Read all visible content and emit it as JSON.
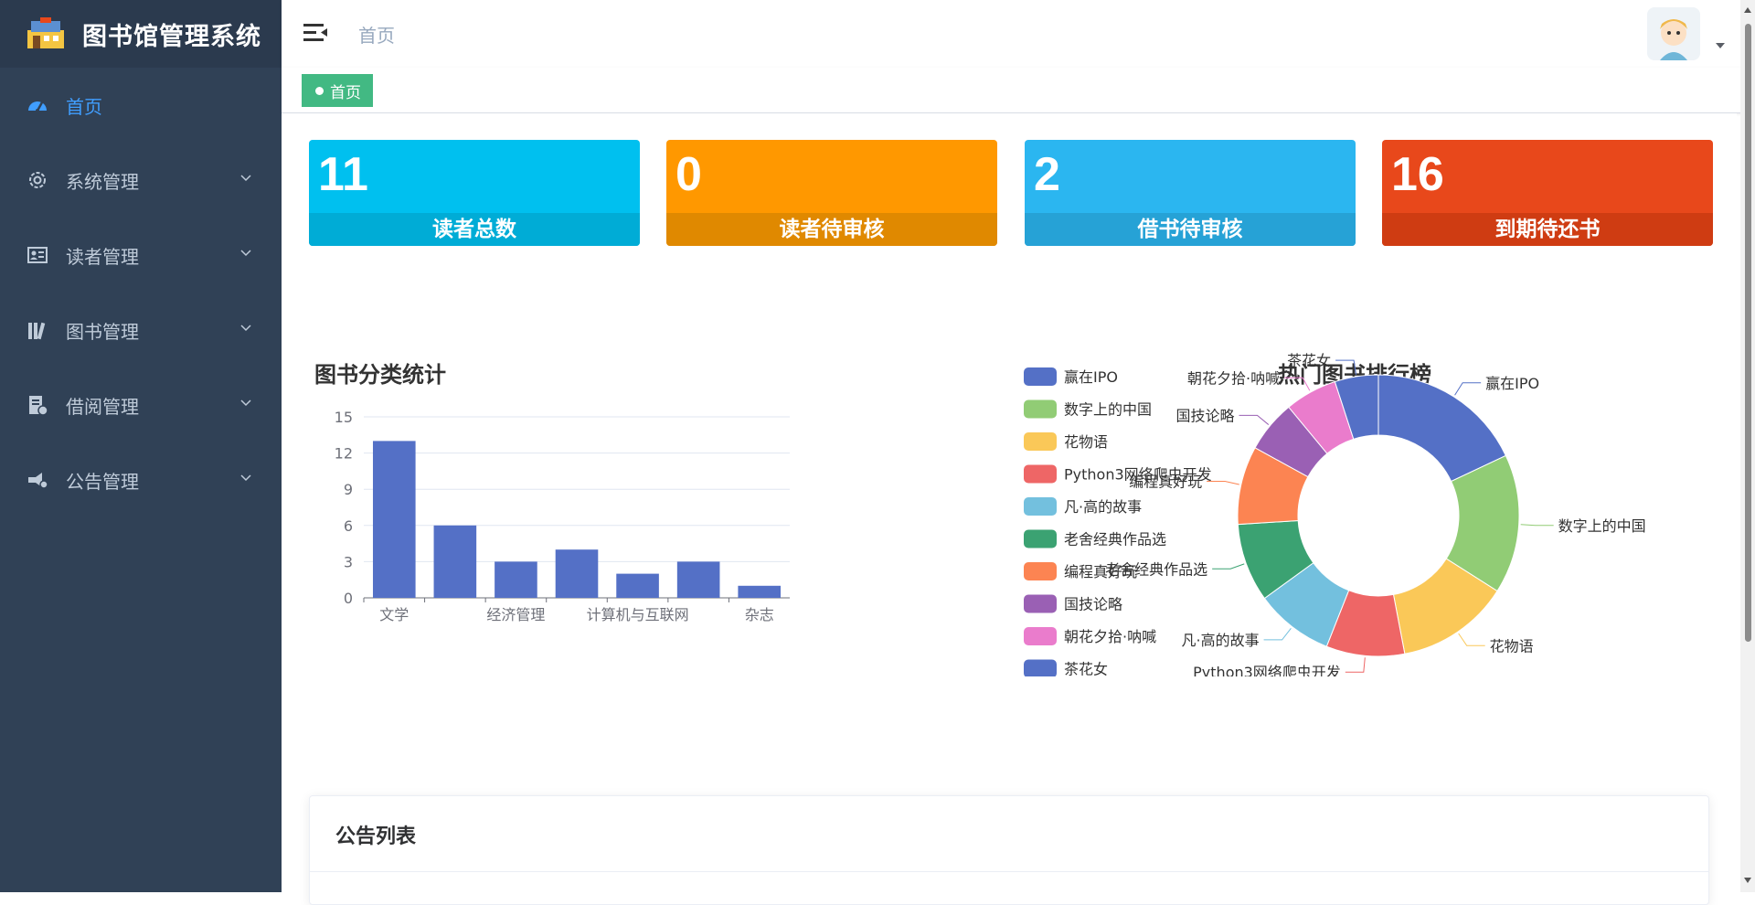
{
  "app": {
    "title": "图书馆管理系统"
  },
  "sidebar": {
    "items": [
      {
        "label": "首页",
        "icon": "dashboard-icon",
        "active": true
      },
      {
        "label": "系统管理",
        "icon": "gear-icon"
      },
      {
        "label": "读者管理",
        "icon": "reader-card-icon"
      },
      {
        "label": "图书管理",
        "icon": "books-icon"
      },
      {
        "label": "借阅管理",
        "icon": "borrow-icon"
      },
      {
        "label": "公告管理",
        "icon": "announcement-icon"
      }
    ]
  },
  "header": {
    "breadcrumb": "首页"
  },
  "tags": [
    {
      "label": "首页",
      "active": true
    }
  ],
  "stats": [
    {
      "value": "11",
      "label": "读者总数",
      "color": "#00c0ef",
      "footer": "#00acd6"
    },
    {
      "value": "0",
      "label": "读者待审核",
      "color": "#ff9800",
      "footer": "#e08900"
    },
    {
      "value": "2",
      "label": "借书待审核",
      "color": "#2bb6f0",
      "footer": "#26a2d6"
    },
    {
      "value": "16",
      "label": "到期待还书",
      "color": "#e8481b",
      "footer": "#cf3c12"
    }
  ],
  "chart_data": [
    {
      "type": "bar",
      "title": "图书分类统计",
      "categories": [
        "文学",
        "",
        "经济管理",
        "",
        "计算机与互联网",
        "",
        "杂志"
      ],
      "values": [
        13,
        6,
        3,
        4,
        2,
        3,
        1
      ],
      "ylim": [
        0,
        15
      ],
      "yticks": [
        0,
        3,
        6,
        9,
        12,
        15
      ],
      "color": "#5470c6",
      "grid": true
    },
    {
      "type": "pie",
      "title": "热门图书排行榜",
      "legend_position": "left",
      "labels": [
        "赢在IPO",
        "数字上的中国",
        "花物语",
        "Python3网络爬虫开发",
        "凡·高的故事",
        "老舍经典作品选",
        "编程真好玩",
        "国技论略",
        "朝花夕拾·呐喊",
        "茶花女"
      ],
      "values": [
        18,
        16,
        13,
        9,
        9,
        9,
        9,
        6,
        6,
        5
      ],
      "colors": [
        "#5470c6",
        "#91cc75",
        "#fac858",
        "#ee6666",
        "#73c0de",
        "#3ba272",
        "#fc8452",
        "#9a60b4",
        "#ea7ccc",
        "#5470c6"
      ]
    }
  ],
  "notice": {
    "title": "公告列表"
  }
}
